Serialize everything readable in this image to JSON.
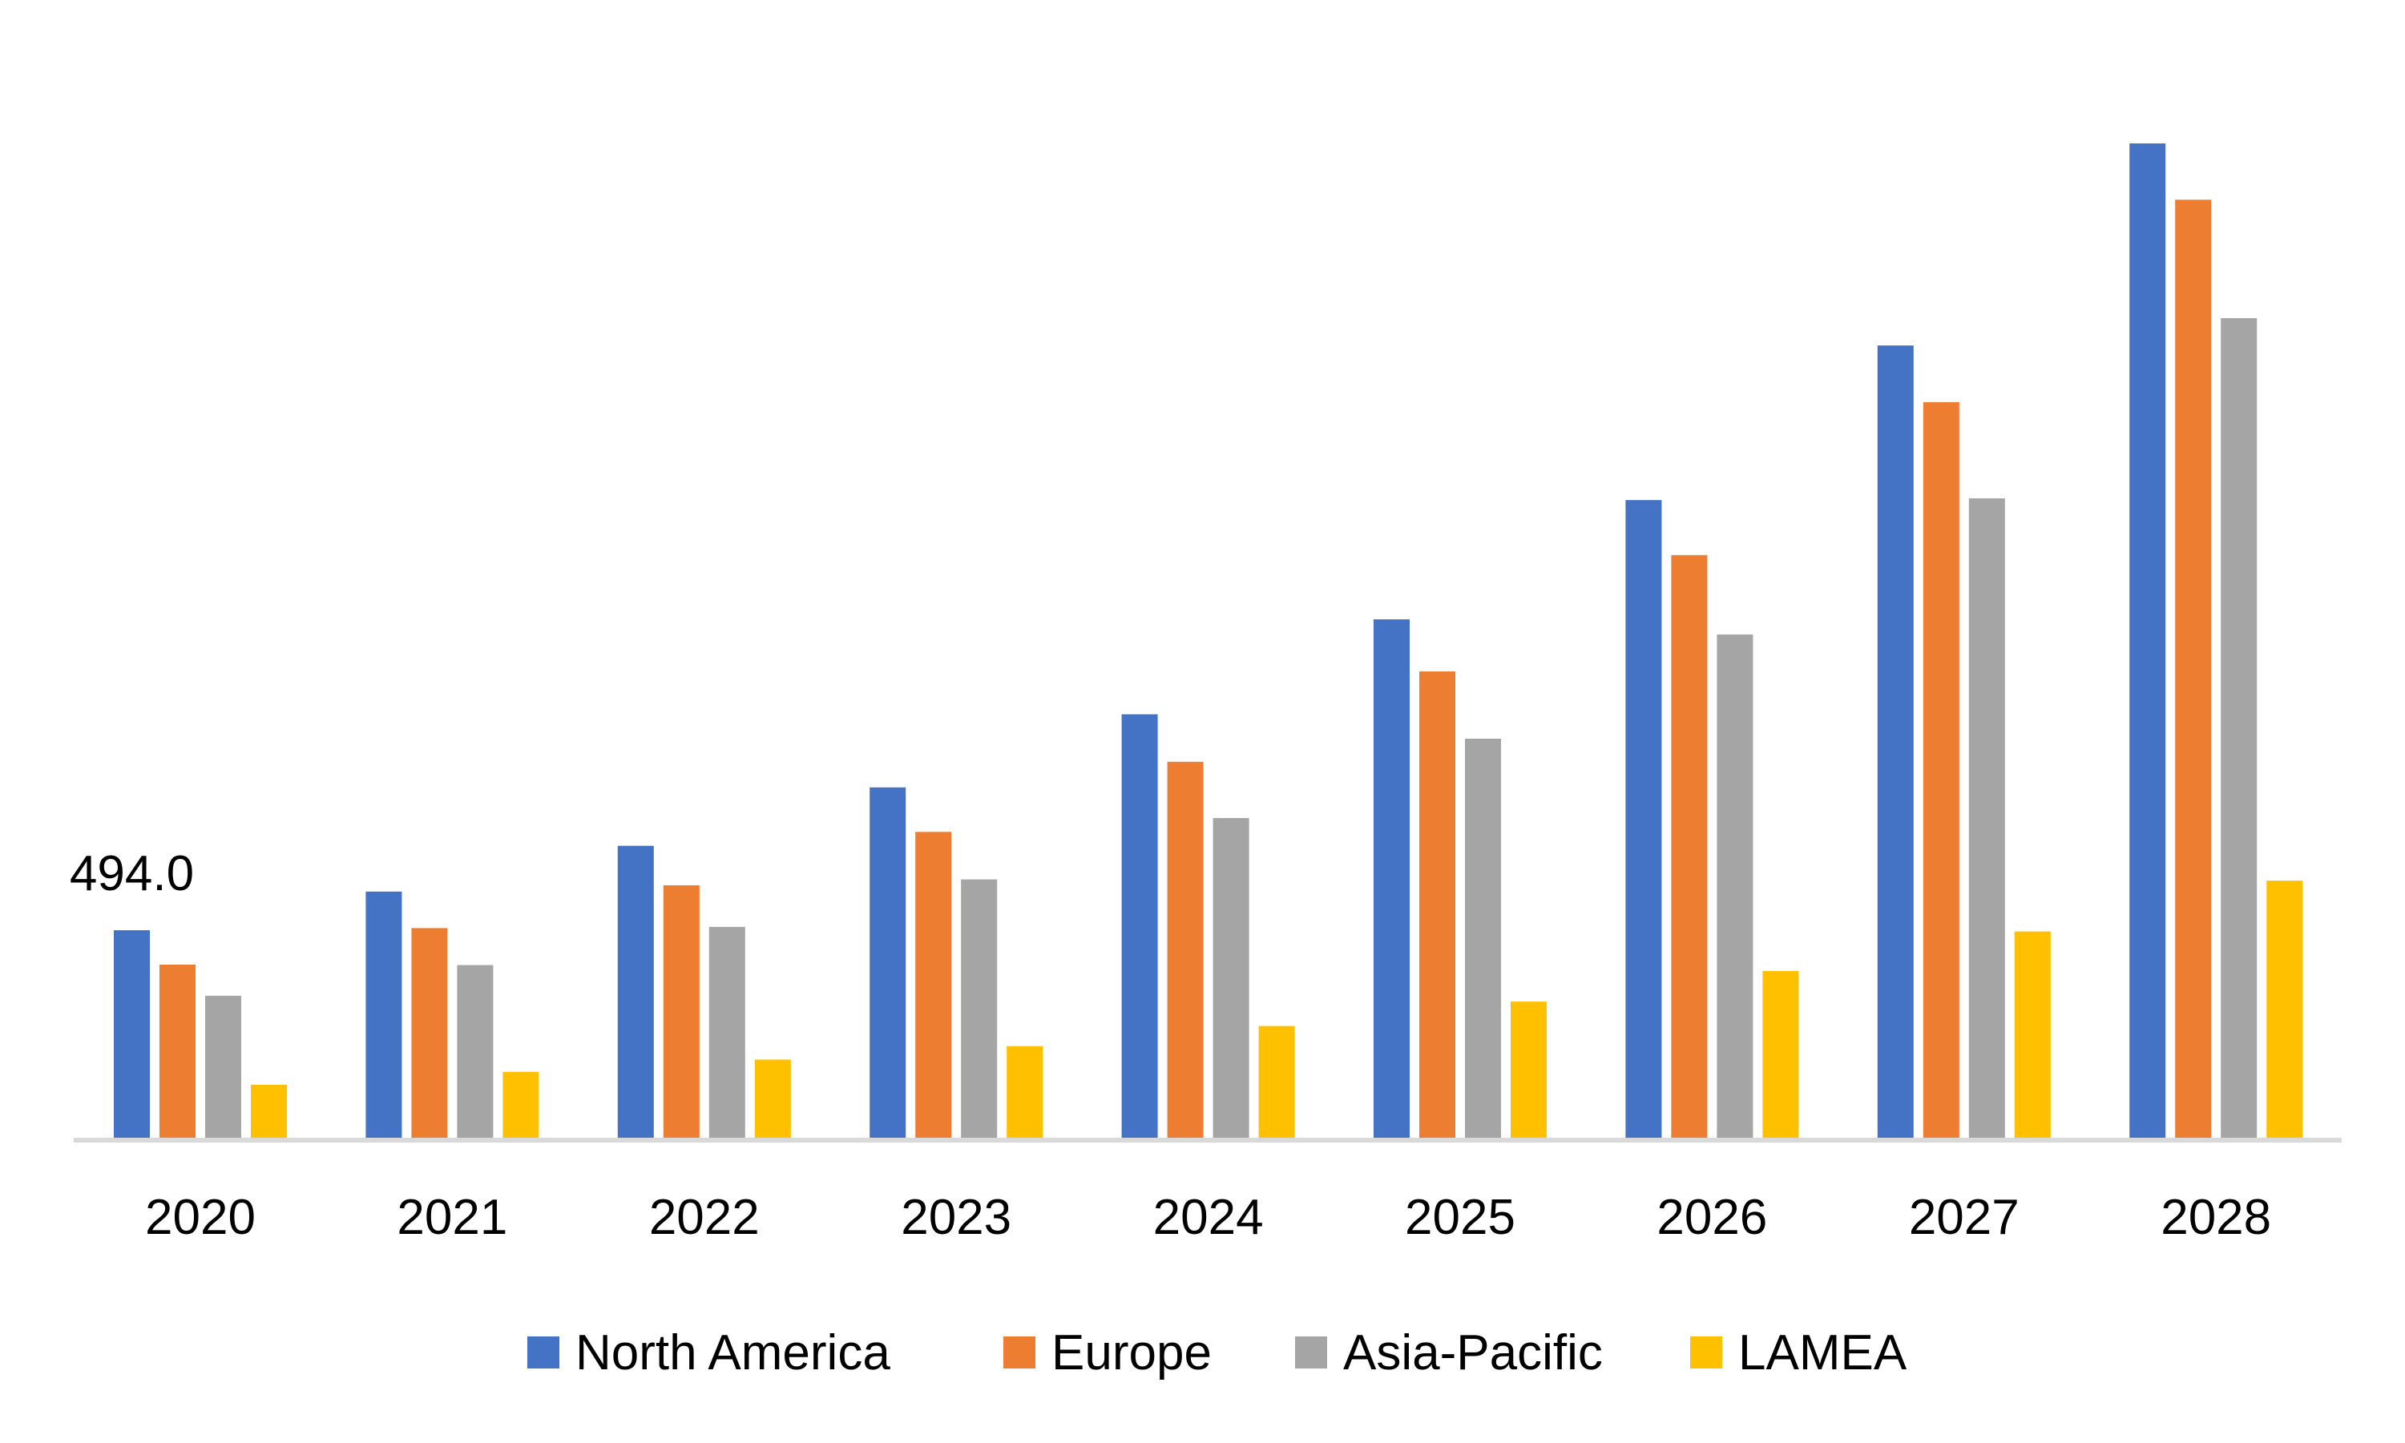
{
  "chart_data": {
    "type": "bar",
    "title": "",
    "xlabel": "",
    "ylabel": "",
    "categories": [
      "2020",
      "2021",
      "2022",
      "2023",
      "2024",
      "2025",
      "2026",
      "2027",
      "2028"
    ],
    "series": [
      {
        "name": "North America",
        "color": "#4472C4",
        "values": [
          494,
          586,
          695,
          834,
          1008,
          1234,
          1518,
          1886,
          2367
        ]
      },
      {
        "name": "Europe",
        "color": "#ED7D31",
        "values": [
          412,
          499,
          601,
          728,
          895,
          1110,
          1387,
          1751,
          2233
        ]
      },
      {
        "name": "Asia-Pacific",
        "color": "#A5A5A5",
        "values": [
          338,
          411,
          502,
          615,
          761,
          950,
          1198,
          1522,
          1951
        ]
      },
      {
        "name": "LAMEA",
        "color": "#FFC000",
        "values": [
          126,
          157,
          186,
          218,
          266,
          324,
          397,
          491,
          612
        ]
      }
    ],
    "data_labels": [
      {
        "series": "North America",
        "category": "2020",
        "text": "494.0"
      }
    ],
    "ylim": [
      0,
      2500
    ],
    "y_axis_visible": false,
    "grid": false,
    "legend": "bottom",
    "axis_color": "#D9D9D9"
  }
}
